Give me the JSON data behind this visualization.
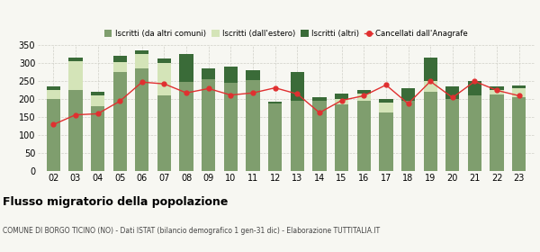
{
  "years": [
    "02",
    "03",
    "04",
    "05",
    "06",
    "07",
    "08",
    "09",
    "10",
    "11",
    "12",
    "13",
    "14",
    "15",
    "16",
    "17",
    "18",
    "19",
    "20",
    "21",
    "22",
    "23"
  ],
  "iscritti_comuni": [
    200,
    225,
    182,
    275,
    287,
    210,
    248,
    255,
    247,
    254,
    188,
    197,
    197,
    185,
    195,
    163,
    195,
    220,
    200,
    210,
    213,
    205
  ],
  "iscritti_estero": [
    25,
    80,
    30,
    28,
    40,
    90,
    0,
    0,
    0,
    0,
    0,
    0,
    0,
    15,
    22,
    28,
    0,
    30,
    0,
    0,
    12,
    25
  ],
  "iscritti_altri": [
    10,
    10,
    8,
    18,
    8,
    13,
    78,
    30,
    45,
    28,
    5,
    80,
    8,
    15,
    8,
    10,
    35,
    65,
    35,
    40,
    10,
    8
  ],
  "cancellati": [
    130,
    157,
    160,
    195,
    248,
    243,
    218,
    230,
    212,
    218,
    232,
    215,
    163,
    197,
    210,
    240,
    188,
    250,
    205,
    250,
    225,
    210
  ],
  "color_comuni": "#7f9e6e",
  "color_estero": "#d4e4b8",
  "color_altri": "#3a6b38",
  "color_cancellati": "#e03030",
  "ylim": [
    0,
    350
  ],
  "yticks": [
    0,
    50,
    100,
    150,
    200,
    250,
    300,
    350
  ],
  "title": "Flusso migratorio della popolazione",
  "subtitle": "COMUNE DI BORGO TICINO (NO) - Dati ISTAT (bilancio demografico 1 gen-31 dic) - Elaborazione TUTTITALIA.IT",
  "legend_labels": [
    "Iscritti (da altri comuni)",
    "Iscritti (dall'estero)",
    "Iscritti (altri)",
    "Cancellati dall'Anagrafe"
  ],
  "bg_color": "#f7f7f2",
  "grid_color": "#d0d0c8"
}
